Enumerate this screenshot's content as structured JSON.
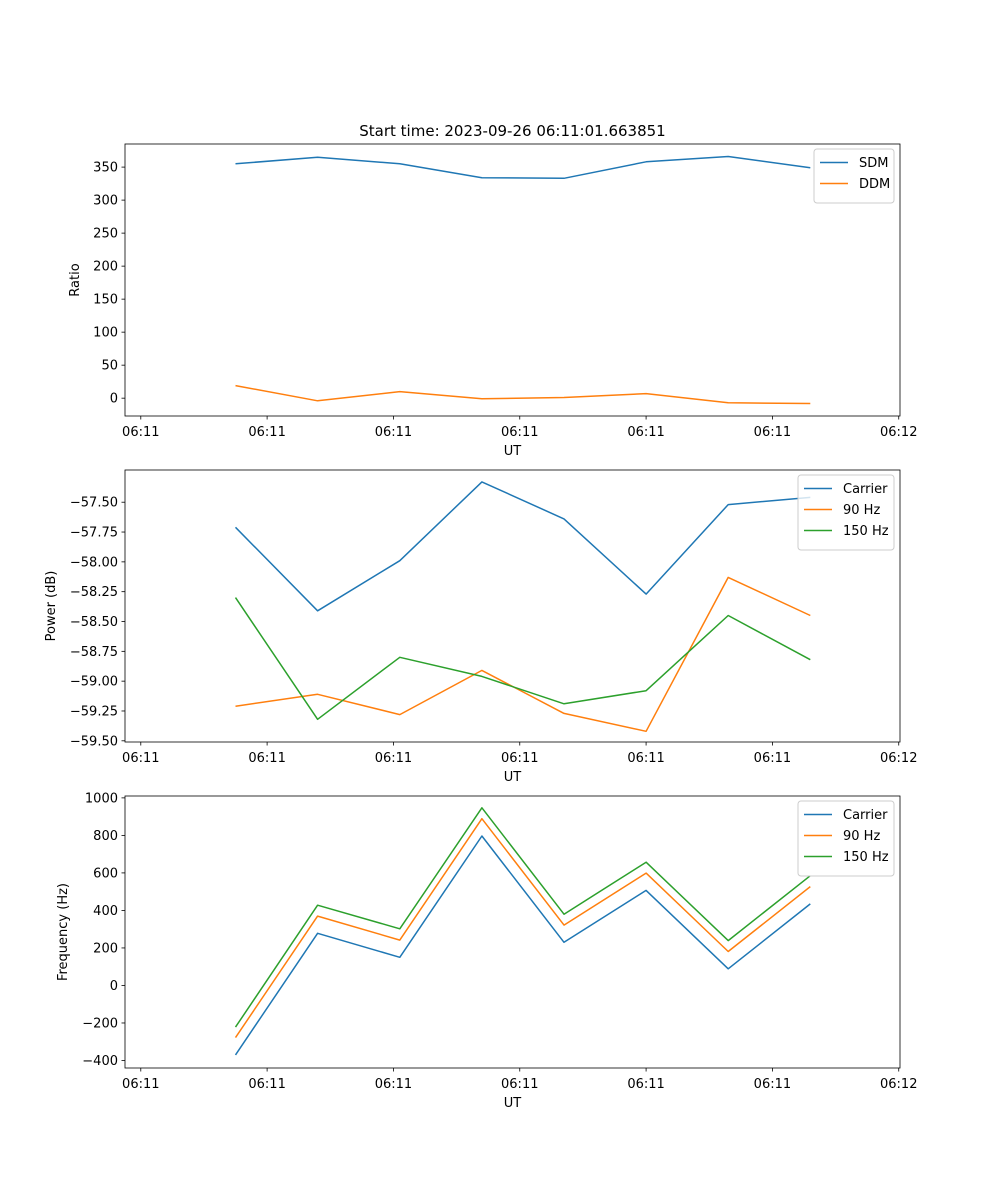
{
  "figure_title": "Start time: 2023-09-26 06:11:01.663851",
  "chart_data": [
    {
      "type": "line",
      "title": "Start time: 2023-09-26 06:11:01.663851",
      "xlabel": "UT",
      "ylabel": "Ratio",
      "x_tick_labels": [
        "06:11",
        "06:11",
        "06:11",
        "06:11",
        "06:11",
        "06:11",
        "06:12"
      ],
      "x": [
        0.75,
        1.4,
        2.05,
        2.7,
        3.35,
        4.0,
        4.65,
        5.3
      ],
      "xlim": [
        -0.125,
        6.01
      ],
      "x_ticks": [
        0,
        1,
        2,
        3,
        4,
        5,
        6
      ],
      "ylim": [
        -27,
        385
      ],
      "y_ticks": [
        0,
        50,
        100,
        150,
        200,
        250,
        300,
        350
      ],
      "y_tick_labels": [
        "0",
        "50",
        "100",
        "150",
        "200",
        "250",
        "300",
        "350"
      ],
      "legend_position": "top-right",
      "series": [
        {
          "name": "SDM",
          "color": "#1f77b4",
          "values": [
            355,
            365,
            355,
            334,
            333,
            358,
            366,
            349
          ]
        },
        {
          "name": "DDM",
          "color": "#ff7f0e",
          "values": [
            19,
            -4,
            10,
            -1,
            1,
            7,
            -7,
            -8
          ]
        }
      ]
    },
    {
      "type": "line",
      "xlabel": "UT",
      "ylabel": "Power (dB)",
      "x_tick_labels": [
        "06:11",
        "06:11",
        "06:11",
        "06:11",
        "06:11",
        "06:11",
        "06:12"
      ],
      "x": [
        0.75,
        1.4,
        2.05,
        2.7,
        3.35,
        4.0,
        4.65,
        5.3
      ],
      "xlim": [
        -0.125,
        6.01
      ],
      "x_ticks": [
        0,
        1,
        2,
        3,
        4,
        5,
        6
      ],
      "ylim": [
        -59.51,
        -57.23
      ],
      "y_ticks": [
        -59.5,
        -59.25,
        -59.0,
        -58.75,
        -58.5,
        -58.25,
        -58.0,
        -57.75,
        -57.5
      ],
      "y_tick_labels": [
        "−59.50",
        "−59.25",
        "−59.00",
        "−58.75",
        "−58.50",
        "−58.25",
        "−58.00",
        "−57.75",
        "−57.50"
      ],
      "legend_position": "top-right",
      "series": [
        {
          "name": "Carrier",
          "color": "#1f77b4",
          "values": [
            -57.71,
            -58.41,
            -57.99,
            -57.33,
            -57.64,
            -58.27,
            -57.52,
            -57.46
          ]
        },
        {
          "name": "90 Hz",
          "color": "#ff7f0e",
          "values": [
            -59.21,
            -59.11,
            -59.28,
            -58.91,
            -59.27,
            -59.42,
            -58.13,
            -58.45
          ]
        },
        {
          "name": "150 Hz",
          "color": "#2ca02c",
          "values": [
            -58.3,
            -59.32,
            -58.8,
            -58.96,
            -59.19,
            -59.08,
            -58.45,
            -58.82
          ]
        }
      ]
    },
    {
      "type": "line",
      "xlabel": "UT",
      "ylabel": "Frequency (Hz)",
      "x_tick_labels": [
        "06:11",
        "06:11",
        "06:11",
        "06:11",
        "06:11",
        "06:11",
        "06:12"
      ],
      "x": [
        0.75,
        1.4,
        2.05,
        2.7,
        3.35,
        4.0,
        4.65,
        5.3
      ],
      "xlim": [
        -0.125,
        6.01
      ],
      "x_ticks": [
        0,
        1,
        2,
        3,
        4,
        5,
        6
      ],
      "ylim": [
        -440,
        1010
      ],
      "y_ticks": [
        -400,
        -200,
        0,
        200,
        400,
        600,
        800,
        1000
      ],
      "y_tick_labels": [
        "−400",
        "−200",
        "0",
        "200",
        "400",
        "600",
        "800",
        "1000"
      ],
      "legend_position": "top-right",
      "series": [
        {
          "name": "Carrier",
          "color": "#1f77b4",
          "values": [
            -370,
            278,
            150,
            797,
            230,
            507,
            89,
            435
          ]
        },
        {
          "name": "90 Hz",
          "color": "#ff7f0e",
          "values": [
            -278,
            370,
            242,
            889,
            322,
            599,
            181,
            527
          ]
        },
        {
          "name": "150 Hz",
          "color": "#2ca02c",
          "values": [
            -222,
            428,
            302,
            947,
            380,
            657,
            239,
            585
          ]
        }
      ]
    }
  ]
}
